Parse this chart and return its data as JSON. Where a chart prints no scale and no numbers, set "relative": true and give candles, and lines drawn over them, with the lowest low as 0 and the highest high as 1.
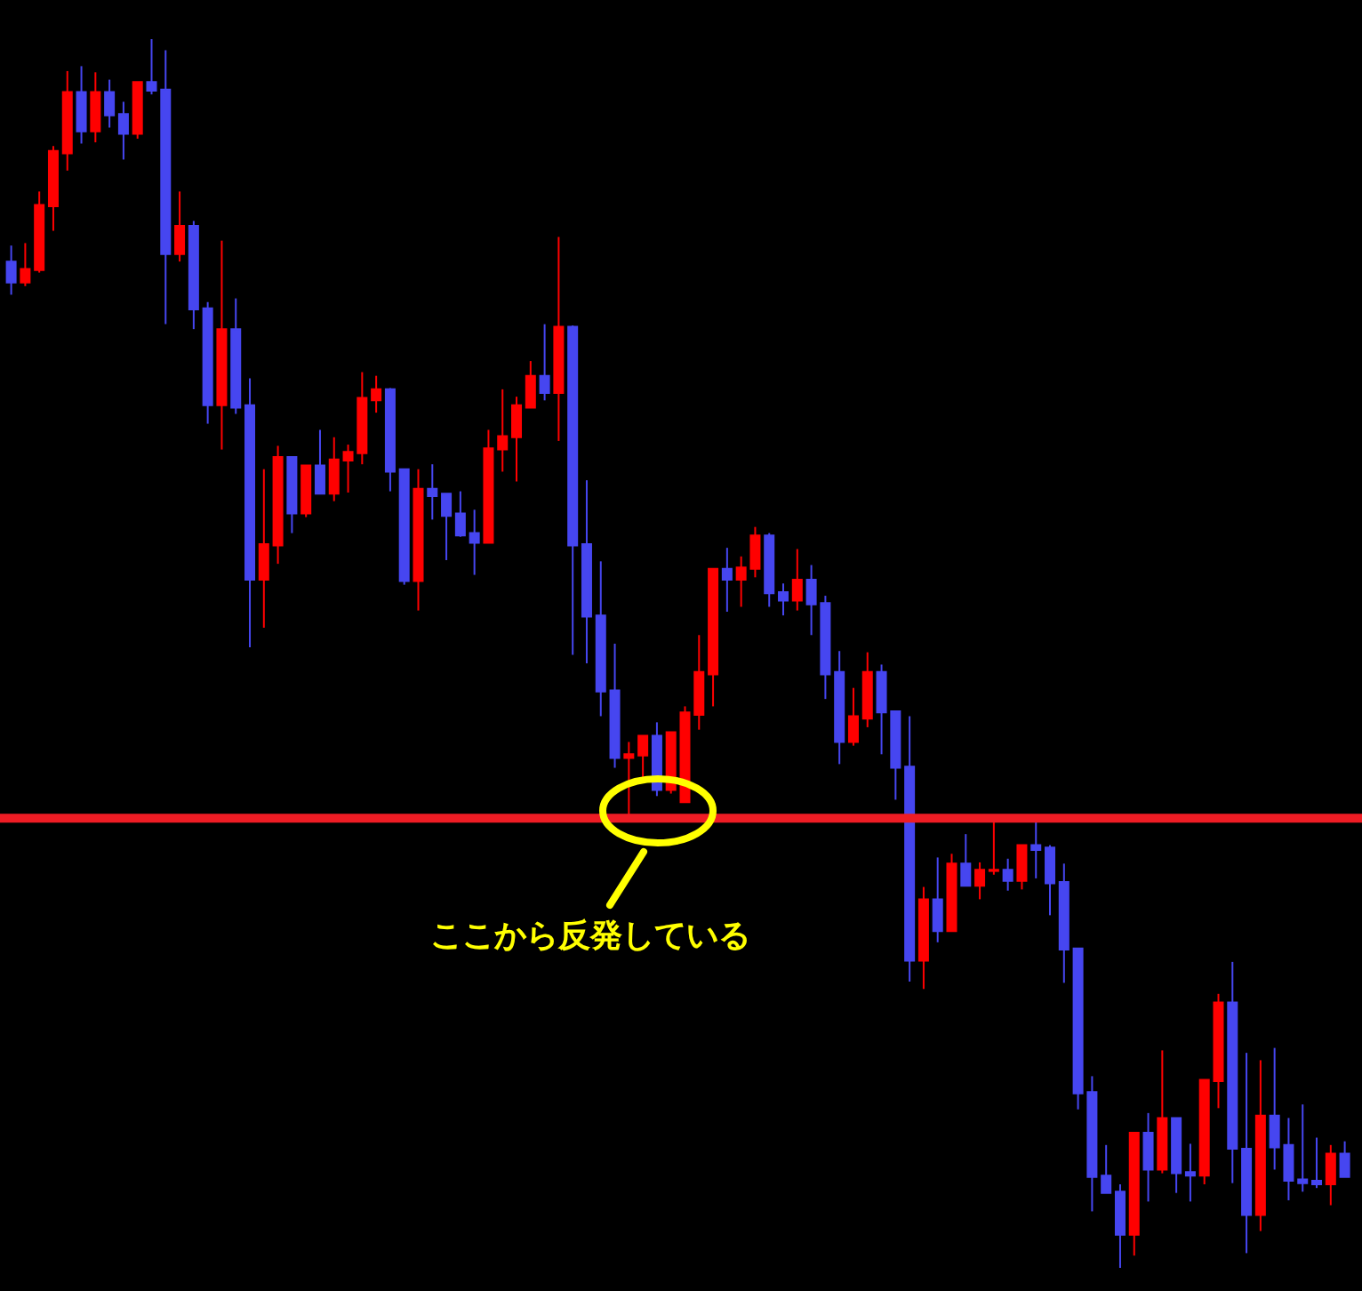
{
  "chart_data": {
    "type": "candlestick",
    "relative": true,
    "categories": [
      null,
      null,
      null,
      null,
      null,
      null,
      null,
      null,
      null,
      null,
      null,
      null,
      null,
      null,
      null,
      null,
      null,
      null,
      null,
      null,
      null,
      null,
      null,
      null,
      null,
      null,
      null,
      null,
      null,
      null,
      null,
      null,
      null,
      null,
      null,
      null,
      null,
      null,
      null,
      null,
      null,
      null,
      null,
      null,
      null,
      null,
      null,
      null,
      null,
      null,
      null,
      null,
      null,
      null,
      null,
      null,
      null,
      null,
      null,
      null,
      null,
      null,
      null,
      null,
      null,
      null,
      null,
      null,
      null,
      null,
      null,
      null,
      null,
      null,
      null,
      null,
      null,
      null,
      null,
      null,
      null,
      null,
      null,
      null,
      null,
      null,
      null,
      null,
      null,
      null,
      null,
      null,
      null,
      null,
      null,
      null
    ],
    "ohlc": [
      [
        0.819,
        0.832,
        0.792,
        0.802
      ],
      [
        0.802,
        0.834,
        0.799,
        0.813
      ],
      [
        0.812,
        0.876,
        0.81,
        0.865
      ],
      [
        0.864,
        0.913,
        0.844,
        0.909
      ],
      [
        0.907,
        0.974,
        0.893,
        0.957
      ],
      [
        0.957,
        0.978,
        0.915,
        0.925
      ],
      [
        0.925,
        0.973,
        0.916,
        0.957
      ],
      [
        0.957,
        0.967,
        0.928,
        0.938
      ],
      [
        0.939,
        0.949,
        0.902,
        0.923
      ],
      [
        0.923,
        0.965,
        0.919,
        0.965
      ],
      [
        0.965,
        1,
        0.955,
        0.958
      ],
      [
        0.959,
        0.991,
        0.768,
        0.825
      ],
      [
        0.825,
        0.876,
        0.819,
        0.848
      ],
      [
        0.848,
        0.852,
        0.764,
        0.78
      ],
      [
        0.781,
        0.786,
        0.687,
        0.702
      ],
      [
        0.702,
        0.836,
        0.666,
        0.764
      ],
      [
        0.764,
        0.789,
        0.695,
        0.7
      ],
      [
        0.702,
        0.724,
        0.505,
        0.56
      ],
      [
        0.56,
        0.65,
        0.521,
        0.589
      ],
      [
        0.588,
        0.669,
        0.573,
        0.66
      ],
      [
        0.66,
        0.66,
        0.598,
        0.614
      ],
      [
        0.614,
        0.653,
        0.611,
        0.653
      ],
      [
        0.653,
        0.682,
        0.63,
        0.63
      ],
      [
        0.63,
        0.676,
        0.624,
        0.658
      ],
      [
        0.657,
        0.67,
        0.631,
        0.664
      ],
      [
        0.663,
        0.729,
        0.654,
        0.708
      ],
      [
        0.706,
        0.726,
        0.696,
        0.715
      ],
      [
        0.715,
        0.716,
        0.632,
        0.648
      ],
      [
        0.65,
        0.65,
        0.556,
        0.559
      ],
      [
        0.559,
        0.65,
        0.535,
        0.634
      ],
      [
        0.634,
        0.654,
        0.609,
        0.628
      ],
      [
        0.63,
        0.63,
        0.576,
        0.612
      ],
      [
        0.614,
        0.632,
        0.595,
        0.596
      ],
      [
        0.598,
        0.617,
        0.564,
        0.59
      ],
      [
        0.59,
        0.682,
        0.59,
        0.667
      ],
      [
        0.666,
        0.715,
        0.648,
        0.677
      ],
      [
        0.676,
        0.709,
        0.64,
        0.702
      ],
      [
        0.7,
        0.738,
        0.7,
        0.726
      ],
      [
        0.726,
        0.768,
        0.706,
        0.712
      ],
      [
        0.712,
        0.839,
        0.673,
        0.766
      ],
      [
        0.766,
        0.767,
        0.499,
        0.588
      ],
      [
        0.589,
        0.641,
        0.492,
        0.53
      ],
      [
        0.531,
        0.575,
        0.449,
        0.469
      ],
      [
        0.47,
        0.508,
        0.407,
        0.415
      ],
      [
        0.415,
        0.428,
        0.369,
        0.418
      ],
      [
        0.417,
        0.433,
        0.399,
        0.433
      ],
      [
        0.433,
        0.444,
        0.384,
        0.389
      ],
      [
        0.389,
        0.436,
        0.386,
        0.436
      ],
      [
        0.379,
        0.457,
        0.379,
        0.452
      ],
      [
        0.45,
        0.515,
        0.438,
        0.485
      ],
      [
        0.483,
        0.569,
        0.457,
        0.569
      ],
      [
        0.569,
        0.586,
        0.534,
        0.56
      ],
      [
        0.56,
        0.579,
        0.538,
        0.57
      ],
      [
        0.569,
        0.603,
        0.562,
        0.596
      ],
      [
        0.596,
        0.598,
        0.538,
        0.549
      ],
      [
        0.55,
        0.557,
        0.531,
        0.543
      ],
      [
        0.543,
        0.585,
        0.535,
        0.56
      ],
      [
        0.56,
        0.572,
        0.515,
        0.54
      ],
      [
        0.541,
        0.547,
        0.463,
        0.483
      ],
      [
        0.485,
        0.502,
        0.41,
        0.428
      ],
      [
        0.428,
        0.472,
        0.425,
        0.449
      ],
      [
        0.447,
        0.501,
        0.44,
        0.485
      ],
      [
        0.485,
        0.491,
        0.418,
        0.452
      ],
      [
        0.453,
        0.453,
        0.381,
        0.407
      ],
      [
        0.408,
        0.449,
        0.233,
        0.25
      ],
      [
        0.25,
        0.31,
        0.227,
        0.3
      ],
      [
        0.3,
        0.334,
        0.265,
        0.274
      ],
      [
        0.274,
        0.337,
        0.274,
        0.329
      ],
      [
        0.329,
        0.353,
        0.311,
        0.311
      ],
      [
        0.311,
        0.33,
        0.3,
        0.324
      ],
      [
        0.323,
        0.366,
        0.32,
        0.324
      ],
      [
        0.324,
        0.333,
        0.307,
        0.315
      ],
      [
        0.315,
        0.344,
        0.308,
        0.344
      ],
      [
        0.344,
        0.366,
        0.317,
        0.34
      ],
      [
        0.342,
        0.344,
        0.287,
        0.313
      ],
      [
        0.314,
        0.329,
        0.232,
        0.259
      ],
      [
        0.26,
        0.26,
        0.129,
        0.142
      ],
      [
        0.143,
        0.156,
        0.046,
        0.074
      ],
      [
        0.075,
        0.1,
        0.061,
        0.061
      ],
      [
        0.062,
        0.068,
        0,
        0.027
      ],
      [
        0.027,
        0.11,
        0.01,
        0.11
      ],
      [
        0.11,
        0.126,
        0.054,
        0.08
      ],
      [
        0.08,
        0.177,
        0.077,
        0.122
      ],
      [
        0.122,
        0.122,
        0.061,
        0.077
      ],
      [
        0.078,
        0.101,
        0.054,
        0.075
      ],
      [
        0.075,
        0.153,
        0.068,
        0.153
      ],
      [
        0.152,
        0.223,
        0.13,
        0.216
      ],
      [
        0.216,
        0.249,
        0.069,
        0.097
      ],
      [
        0.097,
        0.175,
        0.012,
        0.043
      ],
      [
        0.043,
        0.169,
        0.03,
        0.124
      ],
      [
        0.124,
        0.179,
        0.08,
        0.098
      ],
      [
        0.1,
        0.122,
        0.055,
        0.071
      ],
      [
        0.072,
        0.133,
        0.062,
        0.069
      ],
      [
        0.071,
        0.106,
        0.065,
        0.068
      ],
      [
        0.068,
        0.1,
        0.051,
        0.093
      ],
      [
        0.093,
        0.103,
        0.074,
        0.074
      ]
    ],
    "colors": [
      "#4646f0",
      "#ff0000",
      "#ff0000",
      "#ff0000",
      "#ff0000",
      "#4646f0",
      "#ff0000",
      "#4646f0",
      "#4646f0",
      "#ff0000",
      "#4646f0",
      "#4646f0",
      "#ff0000",
      "#4646f0",
      "#4646f0",
      "#ff0000",
      "#4646f0",
      "#4646f0",
      "#ff0000",
      "#ff0000",
      "#4646f0",
      "#ff0000",
      "#4646f0",
      "#ff0000",
      "#ff0000",
      "#ff0000",
      "#ff0000",
      "#4646f0",
      "#4646f0",
      "#ff0000",
      "#4646f0",
      "#4646f0",
      "#4646f0",
      "#4646f0",
      "#ff0000",
      "#ff0000",
      "#ff0000",
      "#ff0000",
      "#4646f0",
      "#ff0000",
      "#4646f0",
      "#4646f0",
      "#4646f0",
      "#4646f0",
      "#ff0000",
      "#ff0000",
      "#4646f0",
      "#ff0000",
      "#ff0000",
      "#ff0000",
      "#ff0000",
      "#4646f0",
      "#ff0000",
      "#ff0000",
      "#4646f0",
      "#4646f0",
      "#ff0000",
      "#4646f0",
      "#4646f0",
      "#4646f0",
      "#ff0000",
      "#ff0000",
      "#4646f0",
      "#4646f0",
      "#4646f0",
      "#ff0000",
      "#4646f0",
      "#ff0000",
      "#4646f0",
      "#ff0000",
      "#ff0000",
      "#4646f0",
      "#ff0000",
      "#4646f0",
      "#4646f0",
      "#4646f0",
      "#4646f0",
      "#4646f0",
      "#4646f0",
      "#4646f0",
      "#ff0000",
      "#4646f0",
      "#ff0000",
      "#4646f0",
      "#4646f0",
      "#ff0000",
      "#ff0000",
      "#4646f0",
      "#4646f0",
      "#ff0000",
      "#4646f0",
      "#4646f0",
      "#4646f0",
      "#4646f0",
      "#ff0000",
      "#4646f0"
    ],
    "ref_lines": [
      {
        "axis": "y",
        "value": 0.366,
        "color": "#ee1c24"
      }
    ],
    "annotations": [
      "ここから反発している"
    ]
  }
}
